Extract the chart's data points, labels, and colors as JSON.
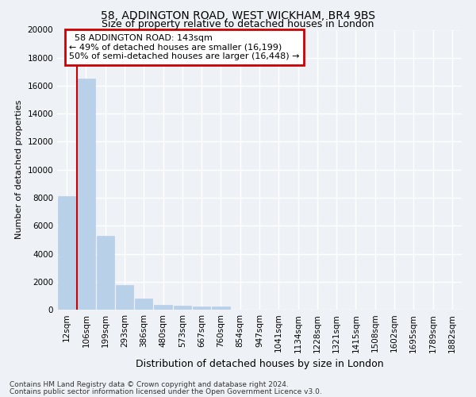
{
  "title1": "58, ADDINGTON ROAD, WEST WICKHAM, BR4 9BS",
  "title2": "Size of property relative to detached houses in London",
  "xlabel": "Distribution of detached houses by size in London",
  "ylabel": "Number of detached properties",
  "footnote1": "Contains HM Land Registry data © Crown copyright and database right 2024.",
  "footnote2": "Contains public sector information licensed under the Open Government Licence v3.0.",
  "annotation_title": "58 ADDINGTON ROAD: 143sqm",
  "annotation_line1": "← 49% of detached houses are smaller (16,199)",
  "annotation_line2": "50% of semi-detached houses are larger (16,448) →",
  "bar_labels": [
    "12sqm",
    "106sqm",
    "199sqm",
    "293sqm",
    "386sqm",
    "480sqm",
    "573sqm",
    "667sqm",
    "760sqm",
    "854sqm",
    "947sqm",
    "1041sqm",
    "1134sqm",
    "1228sqm",
    "1321sqm",
    "1415sqm",
    "1508sqm",
    "1602sqm",
    "1695sqm",
    "1789sqm",
    "1882sqm"
  ],
  "bar_values": [
    8100,
    16500,
    5300,
    1750,
    800,
    350,
    280,
    230,
    230,
    0,
    0,
    0,
    0,
    0,
    0,
    0,
    0,
    0,
    0,
    0,
    0
  ],
  "bar_color": "#b8d0e8",
  "bar_edge_color": "#b8d0e8",
  "red_line_x": 0.545,
  "red_line_color": "#cc0000",
  "ylim": [
    0,
    20000
  ],
  "yticks": [
    0,
    2000,
    4000,
    6000,
    8000,
    10000,
    12000,
    14000,
    16000,
    18000,
    20000
  ],
  "background_color": "#eef2f7",
  "grid_color": "#ffffff",
  "annotation_box_edge": "#cc0000",
  "title1_fontsize": 10,
  "title2_fontsize": 9,
  "ylabel_fontsize": 8,
  "xlabel_fontsize": 9,
  "annotation_fontsize": 8,
  "tick_fontsize": 7.5,
  "footnote_fontsize": 6.5
}
